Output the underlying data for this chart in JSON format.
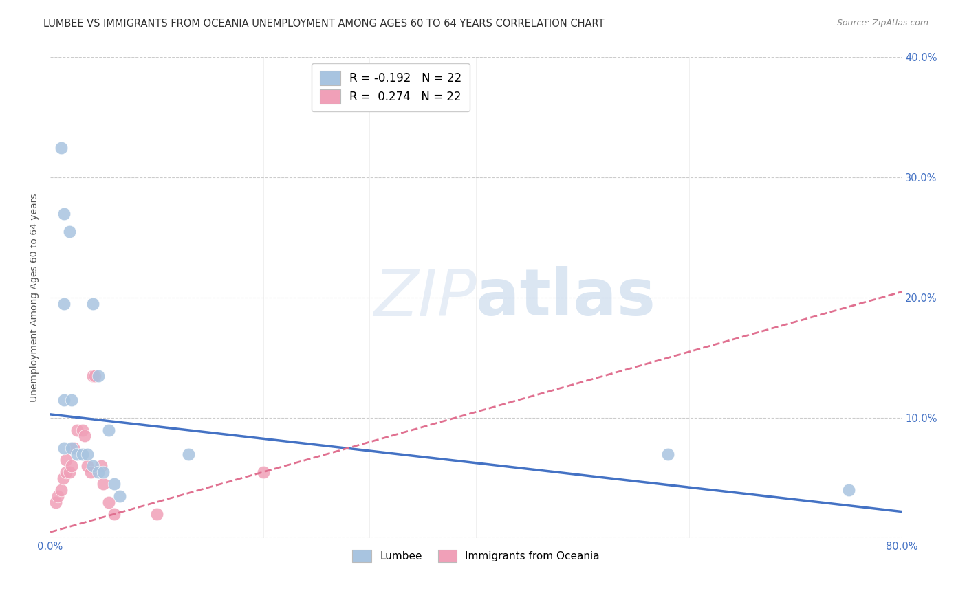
{
  "title": "LUMBEE VS IMMIGRANTS FROM OCEANIA UNEMPLOYMENT AMONG AGES 60 TO 64 YEARS CORRELATION CHART",
  "source": "Source: ZipAtlas.com",
  "ylabel": "Unemployment Among Ages 60 to 64 years",
  "xlim": [
    0.0,
    0.8
  ],
  "ylim": [
    0.0,
    0.4
  ],
  "xticks": [
    0.0,
    0.1,
    0.2,
    0.3,
    0.4,
    0.5,
    0.6,
    0.7,
    0.8
  ],
  "xticklabels": [
    "0.0%",
    "",
    "",
    "",
    "",
    "",
    "",
    "",
    "80.0%"
  ],
  "yticks": [
    0.0,
    0.1,
    0.2,
    0.3,
    0.4
  ],
  "yticklabels_right": [
    "",
    "10.0%",
    "20.0%",
    "30.0%",
    "40.0%"
  ],
  "lumbee_r": -0.192,
  "lumbee_n": 22,
  "oceania_r": 0.274,
  "oceania_n": 22,
  "lumbee_color": "#a8c4e0",
  "oceania_color": "#f0a0b8",
  "lumbee_line_color": "#4472c4",
  "oceania_line_color": "#e07090",
  "lumbee_line_x0": 0.0,
  "lumbee_line_y0": 0.103,
  "lumbee_line_x1": 0.8,
  "lumbee_line_y1": 0.022,
  "oceania_line_x0": 0.0,
  "oceania_line_y0": 0.005,
  "oceania_line_x1": 0.8,
  "oceania_line_y1": 0.205,
  "lumbee_scatter": [
    [
      0.01,
      0.325
    ],
    [
      0.013,
      0.27
    ],
    [
      0.018,
      0.255
    ],
    [
      0.013,
      0.195
    ],
    [
      0.04,
      0.195
    ],
    [
      0.013,
      0.115
    ],
    [
      0.02,
      0.115
    ],
    [
      0.045,
      0.135
    ],
    [
      0.055,
      0.09
    ],
    [
      0.013,
      0.075
    ],
    [
      0.02,
      0.075
    ],
    [
      0.025,
      0.07
    ],
    [
      0.03,
      0.07
    ],
    [
      0.035,
      0.07
    ],
    [
      0.04,
      0.06
    ],
    [
      0.045,
      0.055
    ],
    [
      0.05,
      0.055
    ],
    [
      0.06,
      0.045
    ],
    [
      0.065,
      0.035
    ],
    [
      0.13,
      0.07
    ],
    [
      0.58,
      0.07
    ],
    [
      0.75,
      0.04
    ]
  ],
  "oceania_scatter": [
    [
      0.005,
      0.03
    ],
    [
      0.007,
      0.035
    ],
    [
      0.01,
      0.04
    ],
    [
      0.012,
      0.05
    ],
    [
      0.015,
      0.055
    ],
    [
      0.015,
      0.065
    ],
    [
      0.018,
      0.055
    ],
    [
      0.02,
      0.06
    ],
    [
      0.022,
      0.075
    ],
    [
      0.025,
      0.09
    ],
    [
      0.03,
      0.09
    ],
    [
      0.032,
      0.085
    ],
    [
      0.035,
      0.06
    ],
    [
      0.038,
      0.055
    ],
    [
      0.04,
      0.135
    ],
    [
      0.042,
      0.135
    ],
    [
      0.048,
      0.06
    ],
    [
      0.05,
      0.045
    ],
    [
      0.055,
      0.03
    ],
    [
      0.06,
      0.02
    ],
    [
      0.1,
      0.02
    ],
    [
      0.2,
      0.055
    ]
  ],
  "background_color": "#ffffff",
  "grid_color": "#cccccc",
  "title_color": "#303030",
  "axis_label_color": "#555555",
  "tick_color": "#4472c4"
}
